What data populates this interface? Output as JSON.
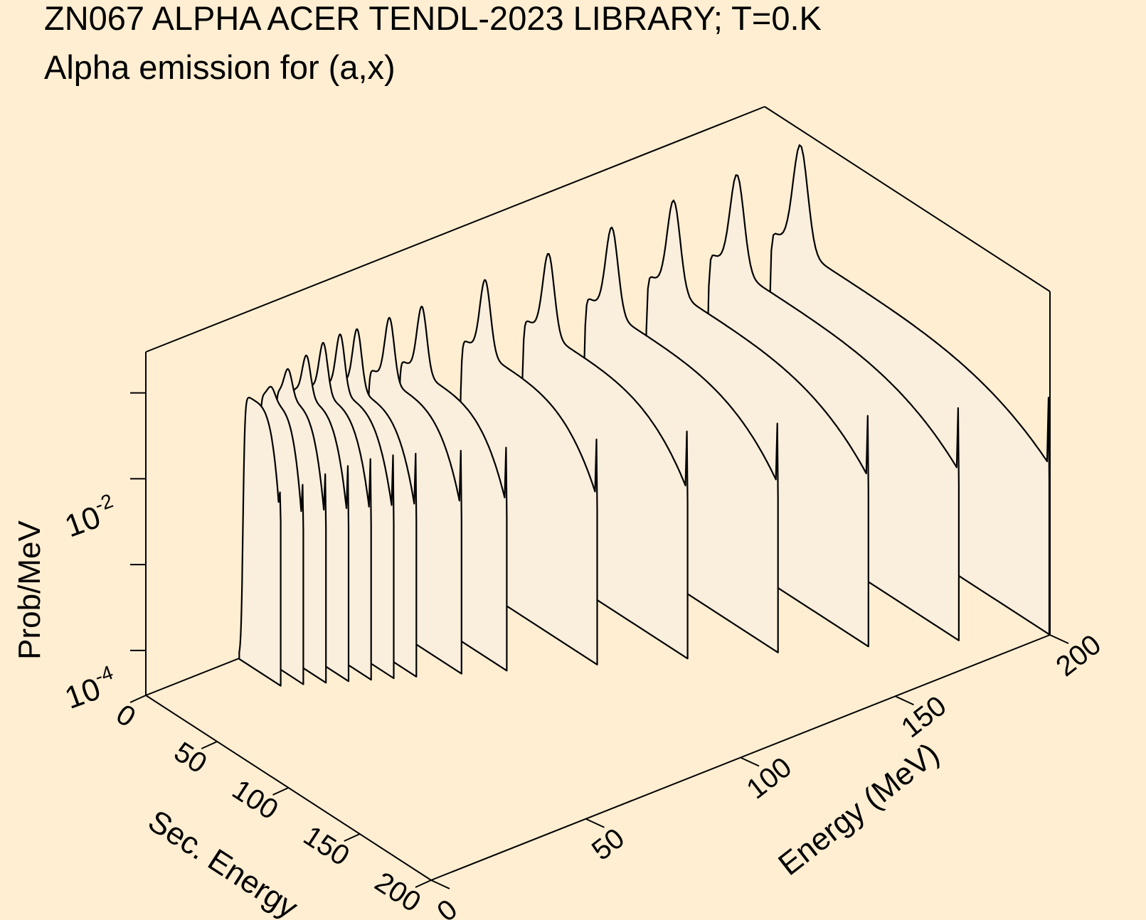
{
  "title": {
    "line1": "ZN067 ALPHA ACER TENDL-2023 LIBRARY; T=0.K",
    "line2": "Alpha emission for (a,x)"
  },
  "colors": {
    "background": "#ffeed2",
    "fill": "#faeedd",
    "line": "#000000"
  },
  "chart_data": {
    "type": "area",
    "projection": "3d-waterfall",
    "x_axis": {
      "label": "Sec. Energy",
      "range": [
        0,
        200
      ],
      "ticks": [
        {
          "value": 0,
          "label": "0"
        },
        {
          "value": 50,
          "label": "50"
        },
        {
          "value": 100,
          "label": "100"
        },
        {
          "value": 150,
          "label": "150"
        },
        {
          "value": 200,
          "label": "200"
        }
      ]
    },
    "y_axis": {
      "label": "Energy (MeV)",
      "range": [
        0,
        200
      ],
      "ticks": [
        {
          "value": 0,
          "label": "0"
        },
        {
          "value": 50,
          "label": "50"
        },
        {
          "value": 100,
          "label": "100"
        },
        {
          "value": 150,
          "label": "150"
        },
        {
          "value": 200,
          "label": "200"
        }
      ]
    },
    "z_axis": {
      "label": "Prob/MeV",
      "scale": "log",
      "range": [
        3e-05,
        0.3
      ],
      "ticks": [
        {
          "value": 0.0001,
          "base": "10",
          "exp": "-4"
        },
        {
          "value": 0.01,
          "base": "10",
          "exp": "-2"
        }
      ]
    },
    "grid": false,
    "series": [
      {
        "incident_energy": 30,
        "peak_energy": 9,
        "peak_value": 0.04,
        "plateau_value": 0.04,
        "end_energy": 28,
        "end_value": 0.004
      },
      {
        "incident_energy": 35,
        "peak_energy": 12,
        "peak_value": 0.05,
        "plateau_value": 0.035,
        "end_energy": 33,
        "end_value": 0.003
      },
      {
        "incident_energy": 40,
        "peak_energy": 13,
        "peak_value": 0.07,
        "plateau_value": 0.033,
        "end_energy": 38,
        "end_value": 0.003
      },
      {
        "incident_energy": 45,
        "peak_energy": 15,
        "peak_value": 0.09,
        "plateau_value": 0.03,
        "end_energy": 43,
        "end_value": 0.003
      },
      {
        "incident_energy": 50,
        "peak_energy": 16,
        "peak_value": 0.11,
        "plateau_value": 0.028,
        "end_energy": 48,
        "end_value": 0.003
      },
      {
        "incident_energy": 55,
        "peak_energy": 17,
        "peak_value": 0.12,
        "plateau_value": 0.026,
        "end_energy": 53,
        "end_value": 0.003
      },
      {
        "incident_energy": 60,
        "peak_energy": 18,
        "peak_value": 0.12,
        "plateau_value": 0.024,
        "end_energy": 58,
        "end_value": 0.003
      },
      {
        "incident_energy": 70,
        "peak_energy": 19,
        "peak_value": 0.12,
        "plateau_value": 0.022,
        "end_energy": 68,
        "end_value": 0.003
      },
      {
        "incident_energy": 80,
        "peak_energy": 20,
        "peak_value": 0.12,
        "plateau_value": 0.02,
        "end_energy": 78,
        "end_value": 0.003
      },
      {
        "incident_energy": 100,
        "peak_energy": 21,
        "peak_value": 0.13,
        "plateau_value": 0.018,
        "end_energy": 98,
        "end_value": 0.003
      },
      {
        "incident_energy": 120,
        "peak_energy": 22,
        "peak_value": 0.14,
        "plateau_value": 0.016,
        "end_energy": 118,
        "end_value": 0.003
      },
      {
        "incident_energy": 140,
        "peak_energy": 23,
        "peak_value": 0.15,
        "plateau_value": 0.015,
        "end_energy": 138,
        "end_value": 0.003
      },
      {
        "incident_energy": 160,
        "peak_energy": 23,
        "peak_value": 0.16,
        "plateau_value": 0.014,
        "end_energy": 158,
        "end_value": 0.003
      },
      {
        "incident_energy": 180,
        "peak_energy": 24,
        "peak_value": 0.17,
        "plateau_value": 0.013,
        "end_energy": 178,
        "end_value": 0.003
      },
      {
        "incident_energy": 200,
        "peak_energy": 25,
        "peak_value": 0.2,
        "plateau_value": 0.012,
        "end_energy": 198,
        "end_value": 0.003
      }
    ]
  }
}
